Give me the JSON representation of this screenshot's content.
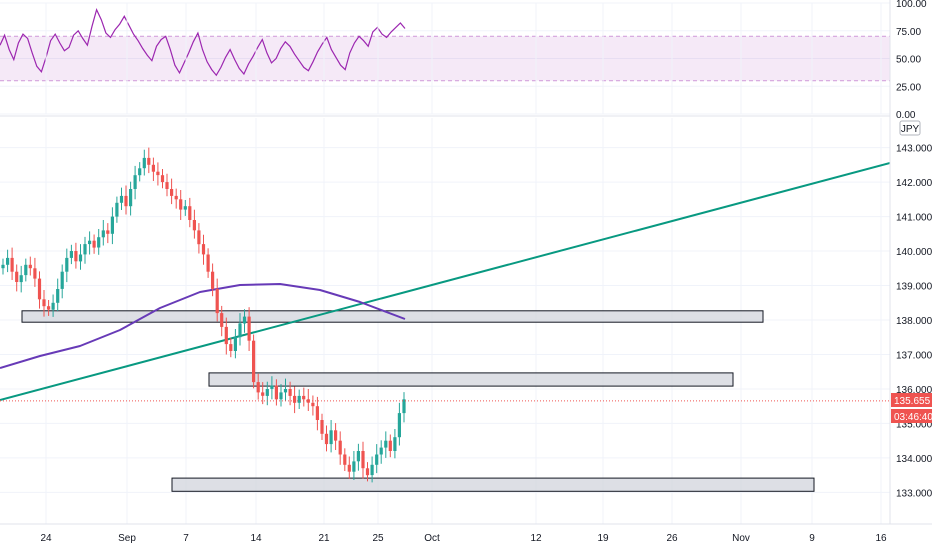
{
  "chart_data": [
    {
      "type": "line",
      "panel": "oscillator",
      "y_ticks": [
        "100.00",
        "75.00",
        "50.00",
        "25.00",
        "0.00"
      ],
      "ylim": [
        0,
        100
      ],
      "band": [
        30,
        70
      ],
      "band_color": "#e1bee7",
      "line_color": "#9c27b0",
      "values": [
        62,
        71,
        58,
        49,
        64,
        72,
        68,
        55,
        43,
        38,
        51,
        66,
        72,
        64,
        57,
        60,
        71,
        75,
        68,
        62,
        79,
        94,
        85,
        73,
        69,
        76,
        81,
        88,
        80,
        72,
        66,
        59,
        53,
        48,
        61,
        67,
        70,
        58,
        44,
        37,
        46,
        55,
        65,
        73,
        58,
        47,
        40,
        35,
        42,
        51,
        58,
        49,
        41,
        36,
        45,
        52,
        60,
        67,
        55,
        46,
        50,
        59,
        65,
        61,
        54,
        48,
        42,
        39,
        47,
        56,
        63,
        69,
        58,
        51,
        44,
        40,
        55,
        64,
        70,
        66,
        61,
        74,
        78,
        72,
        69,
        74,
        78,
        82,
        77
      ],
      "grid": true
    },
    {
      "type": "candlestick",
      "panel": "price",
      "currency": "JPY",
      "x_ticks": [
        "24",
        "Sep",
        "7",
        "14",
        "21",
        "25",
        "Oct",
        "12",
        "19",
        "26",
        "Nov",
        "9",
        "16"
      ],
      "y_ticks": [
        "143.000",
        "142.000",
        "141.000",
        "140.000",
        "139.000",
        "138.000",
        "137.000",
        "136.000",
        "135.000",
        "134.000",
        "133.000"
      ],
      "ylim": [
        132.5,
        143.5
      ],
      "up_color": "#26a69a",
      "down_color": "#ef5350",
      "current_price": "135.655",
      "countdown": "03:46:40",
      "close_series": [
        139.6,
        139.8,
        139.4,
        139.1,
        139.3,
        139.6,
        139.5,
        139.2,
        138.6,
        138.4,
        138.3,
        138.5,
        138.9,
        139.4,
        139.8,
        140.0,
        139.7,
        139.9,
        140.2,
        140.3,
        140.1,
        140.4,
        140.6,
        140.5,
        141.0,
        141.4,
        141.6,
        141.3,
        141.8,
        142.2,
        142.4,
        142.7,
        142.5,
        142.3,
        142.2,
        142.0,
        141.8,
        141.6,
        141.5,
        141.2,
        141.3,
        140.9,
        140.6,
        140.2,
        139.9,
        139.4,
        138.9,
        138.2,
        137.8,
        137.3,
        137.1,
        137.5,
        137.9,
        138.1,
        137.4,
        136.2,
        135.9,
        135.8,
        136.0,
        136.1,
        135.7,
        135.9,
        136.0,
        135.8,
        135.6,
        135.8,
        135.7,
        135.6,
        135.5,
        135.1,
        134.7,
        134.4,
        134.8,
        134.5,
        134.1,
        133.8,
        133.6,
        133.9,
        134.2,
        133.7,
        133.5,
        133.8,
        134.1,
        134.3,
        134.5,
        134.2,
        134.6,
        135.3,
        135.7
      ],
      "support_resistance_zones": [
        {
          "low": 138.05,
          "high": 138.15
        },
        {
          "low": 136.2,
          "high": 136.35
        },
        {
          "low": 133.15,
          "high": 133.3
        }
      ],
      "trendline_color": "#089981",
      "moving_average_color": "#673ab7",
      "grid": true
    }
  ]
}
